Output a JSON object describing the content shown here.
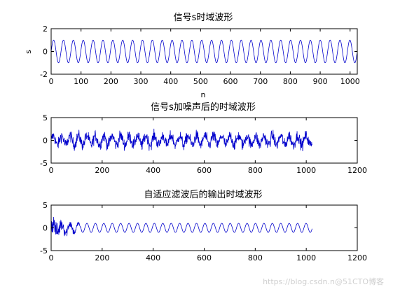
{
  "figure": {
    "background": "#ffffff",
    "line_color": "#0000cc",
    "watermark": "https://blog.csdn.n@51CTO博客"
  },
  "chart_data": [
    {
      "type": "line",
      "title": "信号s时域波形",
      "xlabel": "n",
      "ylabel": "s",
      "xlim": [
        0,
        1024
      ],
      "ylim": [
        -2,
        2
      ],
      "xticks": [
        0,
        100,
        200,
        300,
        400,
        500,
        600,
        700,
        800,
        900,
        1000
      ],
      "yticks": [
        -2,
        0,
        2
      ],
      "grid": false,
      "series": [
        {
          "kind": "sine",
          "n": 1024,
          "amplitude": 1,
          "cycles": 31,
          "noise": 0,
          "noise_until": 0
        }
      ]
    },
    {
      "type": "line",
      "title": "信号s加噪声后的时域波形",
      "xlabel": "",
      "ylabel": "",
      "xlim": [
        0,
        1200
      ],
      "ylim": [
        -5,
        5
      ],
      "xticks": [
        0,
        200,
        400,
        600,
        800,
        1000,
        1200
      ],
      "yticks": [
        -5,
        0,
        5
      ],
      "grid": false,
      "series": [
        {
          "kind": "sine+noise",
          "n": 1024,
          "amplitude": 1,
          "cycles": 31,
          "noise": 0.9,
          "noise_until": 1024
        }
      ]
    },
    {
      "type": "line",
      "title": "自适应滤波后的输出时域波形",
      "xlabel": "",
      "ylabel": "",
      "xlim": [
        0,
        1200
      ],
      "ylim": [
        -5,
        5
      ],
      "xticks": [
        0,
        200,
        400,
        600,
        800,
        1000,
        1200
      ],
      "yticks": [
        -5,
        0,
        5
      ],
      "grid": false,
      "series": [
        {
          "kind": "converging",
          "n": 1024,
          "amplitude": 1,
          "cycles": 31,
          "noise": 1.6,
          "noise_until": 120
        }
      ]
    }
  ]
}
